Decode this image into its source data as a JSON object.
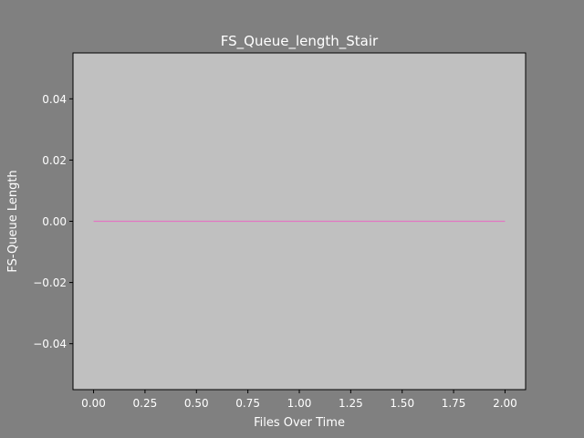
{
  "colors": {
    "figure_bg": "#808080",
    "axes_bg": "#c0c0c0",
    "text": "#ffffff",
    "axis": "#000000",
    "line": "#e377c2"
  },
  "chart_data": {
    "type": "line",
    "title": "FS_Queue_length_Stair",
    "xlabel": "Files Over Time",
    "ylabel": "FS-Queue Length",
    "xlim": [
      -0.1,
      2.1
    ],
    "ylim": [
      -0.055,
      0.055
    ],
    "grid": false,
    "legend": "none",
    "xticks": [
      0.0,
      0.25,
      0.5,
      0.75,
      1.0,
      1.25,
      1.5,
      1.75,
      2.0
    ],
    "xtick_labels": [
      "0.00",
      "0.25",
      "0.50",
      "0.75",
      "1.00",
      "1.25",
      "1.50",
      "1.75",
      "2.00"
    ],
    "yticks": [
      -0.04,
      -0.02,
      0.0,
      0.02,
      0.04
    ],
    "ytick_labels": [
      "−0.04",
      "−0.02",
      "0.00",
      "0.02",
      "0.04"
    ],
    "series": [
      {
        "x": [
          0,
          1,
          2
        ],
        "y": [
          0,
          0,
          0
        ]
      }
    ]
  }
}
